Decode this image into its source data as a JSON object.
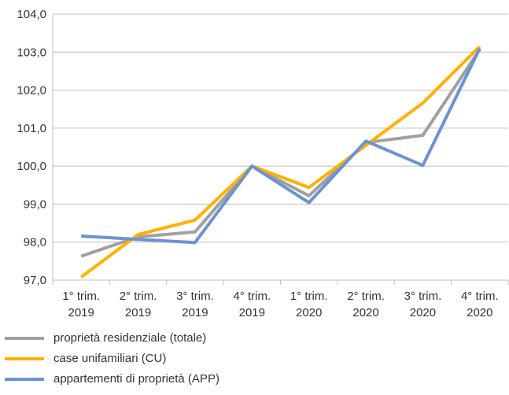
{
  "chart_data": {
    "type": "line",
    "categories": [
      [
        "1° trim.",
        "2019"
      ],
      [
        "2° trim.",
        "2019"
      ],
      [
        "3° trim.",
        "2019"
      ],
      [
        "4° trim.",
        "2019"
      ],
      [
        "1° trim.",
        "2020"
      ],
      [
        "2° trim.",
        "2020"
      ],
      [
        "3° trim.",
        "2020"
      ],
      [
        "4° trim.",
        "2020"
      ]
    ],
    "ylim": [
      97.0,
      104.0
    ],
    "yticks": [
      "97,0",
      "98,0",
      "99,0",
      "100,0",
      "101,0",
      "102,0",
      "103,0",
      "104,0"
    ],
    "grid": true,
    "legend_position": "bottom-left",
    "series": [
      {
        "name": "proprietà residenziale (totale)",
        "color": "#A0A0A0",
        "values": [
          97.63,
          98.14,
          98.27,
          100.0,
          99.22,
          100.62,
          100.81,
          103.07
        ]
      },
      {
        "name": "case unifamiliari (CU)",
        "color": "#FFB000",
        "values": [
          97.08,
          98.2,
          98.58,
          100.0,
          99.44,
          100.55,
          101.66,
          103.15
        ]
      },
      {
        "name": "appartementi di proprietà (APP)",
        "color": "#6A93D4",
        "values": [
          98.16,
          98.07,
          97.99,
          100.0,
          99.04,
          100.66,
          100.02,
          103.1
        ]
      }
    ]
  }
}
